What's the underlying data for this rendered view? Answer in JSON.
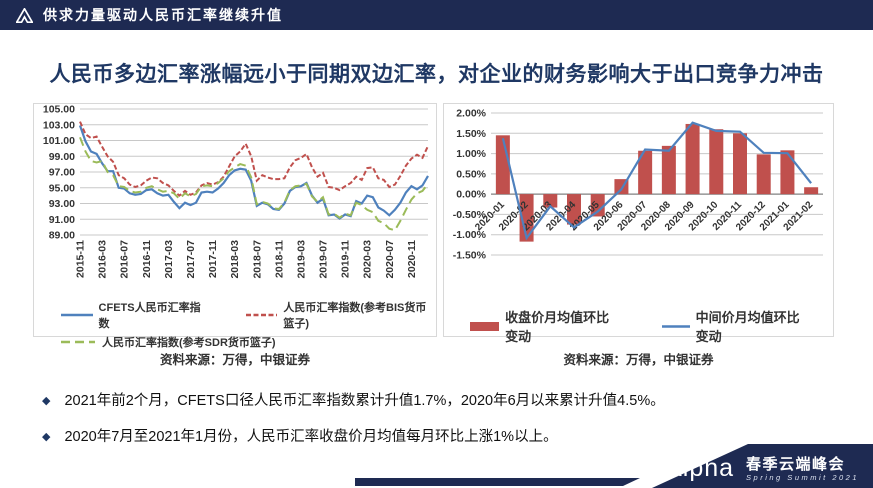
{
  "header": {
    "title": "供求力量驱动人民币汇率继续升值"
  },
  "slide_title": "人民币多边汇率涨幅远小于同期双边汇率，对企业的财务影响大于出口竞争力冲击",
  "sources": {
    "left": "资料来源：万得，中银证券",
    "right": "资料来源：万得，中银证券"
  },
  "bullets": {
    "marker": "◆",
    "items": [
      {
        "text": "2021年前2个月，CFETS口径人民币汇率指数累计升值1.7%，2020年6月以来累计升值4.5%。"
      },
      {
        "text": "2020年7月至2021年1月份，人民币汇率收盘价月均值每月环比上涨1%以上。"
      }
    ]
  },
  "footer": {
    "brand": "Alpha",
    "event_cn": "春季云端峰会",
    "event_en": "Spring Summit 2021"
  },
  "colors": {
    "navy": "#1E2A52",
    "title_navy": "#1F3864",
    "bar_red": "#C0504D",
    "line_blue": "#4F81BD",
    "line_green": "#9BBB59",
    "grid": "#C8C8C8",
    "zero_axis": "#808080",
    "box_border": "#D8D8D8",
    "tick_text": "#333333"
  },
  "chart_data": [
    {
      "type": "line",
      "title": "",
      "ylim": [
        89,
        105
      ],
      "ystep": 2,
      "y_format": "fixed2",
      "grid": true,
      "legend_position": "bottom",
      "n_points": 64,
      "x_label_every": 4,
      "x_labels": [
        "2015-11",
        "2016-03",
        "2016-07",
        "2016-11",
        "2017-03",
        "2017-07",
        "2017-11",
        "2018-03",
        "2018-07",
        "2018-11",
        "2019-03",
        "2019-07",
        "2019-11",
        "2020-03",
        "2020-07",
        "2020-11"
      ],
      "series": [
        {
          "name": "CFETS人民币汇率指数",
          "style": "solid",
          "color": "#4F81BD",
          "values": [
            102.9,
            100.9,
            99.6,
            99.3,
            98.1,
            97.1,
            97.1,
            95.0,
            94.9,
            94.3,
            94.1,
            94.2,
            94.7,
            94.8,
            94.3,
            94.0,
            94.1,
            93.2,
            92.4,
            93.1,
            92.8,
            93.1,
            94.4,
            94.5,
            94.4,
            94.9,
            95.6,
            96.6,
            97.2,
            97.4,
            97.3,
            95.9,
            92.7,
            93.1,
            92.9,
            92.3,
            92.2,
            93.0,
            94.6,
            95.1,
            95.2,
            95.6,
            94.0,
            93.1,
            93.6,
            91.5,
            91.6,
            91.1,
            91.6,
            91.4,
            93.3,
            93.0,
            94.0,
            93.8,
            92.5,
            92.1,
            91.5,
            92.2,
            93.1,
            94.4,
            95.2,
            94.8,
            95.3,
            96.5
          ]
        },
        {
          "name": "人民币汇率指数(参考BIS货币篮子)",
          "style": "dashed",
          "color": "#C0504D",
          "values": [
            103.4,
            101.8,
            101.3,
            101.5,
            100.2,
            99.0,
            98.3,
            96.6,
            96.2,
            95.4,
            95.1,
            95.3,
            95.9,
            96.3,
            96.2,
            95.6,
            95.3,
            94.6,
            94.0,
            94.6,
            94.1,
            94.4,
            95.3,
            95.6,
            95.4,
            95.7,
            96.4,
            97.7,
            99.0,
            99.6,
            100.6,
            99.0,
            95.9,
            96.6,
            96.3,
            96.1,
            96.1,
            96.2,
            97.6,
            98.5,
            98.8,
            99.3,
            97.6,
            96.4,
            96.9,
            95.1,
            95.0,
            94.7,
            95.2,
            95.6,
            96.4,
            96.0,
            97.5,
            97.6,
            96.2,
            96.0,
            95.1,
            95.4,
            96.5,
            97.8,
            98.7,
            99.2,
            98.8,
            100.3
          ]
        },
        {
          "name": "人民币汇率指数(参考SDR货币篮子)",
          "style": "longdash",
          "color": "#9BBB59",
          "values": [
            101.4,
            99.6,
            98.4,
            98.2,
            98.4,
            97.0,
            96.6,
            95.2,
            95.1,
            94.6,
            94.4,
            94.5,
            95.0,
            95.2,
            94.8,
            94.5,
            94.6,
            94.3,
            93.6,
            94.3,
            93.9,
            94.2,
            95.2,
            95.3,
            95.2,
            95.6,
            96.2,
            97.1,
            97.6,
            98.0,
            97.8,
            96.3,
            92.9,
            93.2,
            93.0,
            92.4,
            92.3,
            93.1,
            94.7,
            95.2,
            95.3,
            95.5,
            93.9,
            93.2,
            93.8,
            91.6,
            91.7,
            91.2,
            91.7,
            91.5,
            93.1,
            92.8,
            92.2,
            91.9,
            90.8,
            90.5,
            89.8,
            89.6,
            90.8,
            92.2,
            93.5,
            94.3,
            94.6,
            95.5
          ]
        }
      ]
    },
    {
      "type": "bar",
      "title": "",
      "ylim": [
        -1.5,
        2.0
      ],
      "ystep": 0.5,
      "y_format": "percent2",
      "grid": true,
      "legend_position": "bottom",
      "categories": [
        "2020-01",
        "2020-02",
        "2020-03",
        "2020-04",
        "2020-05",
        "2020-06",
        "2020-07",
        "2020-08",
        "2020-09",
        "2020-10",
        "2020-11",
        "2020-12",
        "2021-01",
        "2021-02"
      ],
      "series": [
        {
          "name": "收盘价月均值环比变动",
          "type": "bar",
          "color": "#C0504D",
          "values": [
            1.45,
            -1.17,
            -0.33,
            -0.75,
            -0.55,
            0.37,
            1.07,
            1.19,
            1.73,
            1.6,
            1.5,
            0.98,
            1.08,
            0.17
          ]
        },
        {
          "name": "中间价月均值环比变动",
          "type": "line",
          "color": "#4F81BD",
          "values": [
            1.38,
            -1.08,
            -0.3,
            -0.82,
            -0.43,
            0.12,
            1.1,
            1.07,
            1.76,
            1.56,
            1.54,
            1.02,
            1.01,
            0.27
          ]
        }
      ]
    }
  ]
}
